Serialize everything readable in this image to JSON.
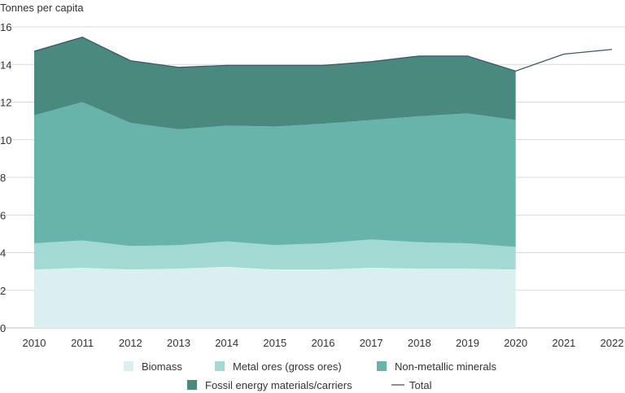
{
  "chart_data": {
    "type": "area",
    "ylabel": "Tonnes per capita",
    "x": [
      "2010",
      "2011",
      "2012",
      "2013",
      "2014",
      "2015",
      "2016",
      "2017",
      "2018",
      "2019",
      "2020",
      "2021",
      "2022"
    ],
    "ylim": [
      0,
      16
    ],
    "yticks": [
      "0",
      "2",
      "4",
      "6",
      "8",
      "10",
      "12",
      "14",
      "16"
    ],
    "grid": true,
    "legend_position": "bottom",
    "series": [
      {
        "name": "Biomass",
        "kind": "area",
        "color": "#dbeff0",
        "values": [
          3.1,
          3.2,
          3.1,
          3.15,
          3.25,
          3.1,
          3.1,
          3.2,
          3.15,
          3.15,
          3.1,
          null,
          null
        ]
      },
      {
        "name": "Metal ores (gross ores)",
        "kind": "area",
        "color": "#a3d9d3",
        "values": [
          1.4,
          1.45,
          1.25,
          1.25,
          1.35,
          1.3,
          1.4,
          1.5,
          1.4,
          1.35,
          1.2,
          null,
          null
        ]
      },
      {
        "name": "Non-metallic minerals",
        "kind": "area",
        "color": "#66b4aa",
        "values": [
          6.8,
          7.35,
          6.55,
          6.15,
          6.15,
          6.3,
          6.35,
          6.35,
          6.7,
          6.9,
          6.75,
          null,
          null
        ]
      },
      {
        "name": "Fossil energy materials/carriers",
        "kind": "area",
        "color": "#4a8a7e",
        "values": [
          3.4,
          3.45,
          3.3,
          3.3,
          3.2,
          3.25,
          3.1,
          3.1,
          3.2,
          3.05,
          2.6,
          null,
          null
        ]
      },
      {
        "name": "Total",
        "kind": "line",
        "color": "#3e5670",
        "values": [
          14.7,
          15.45,
          14.2,
          13.85,
          13.95,
          13.95,
          13.95,
          14.15,
          14.45,
          14.45,
          13.65,
          14.55,
          14.8
        ]
      }
    ]
  }
}
